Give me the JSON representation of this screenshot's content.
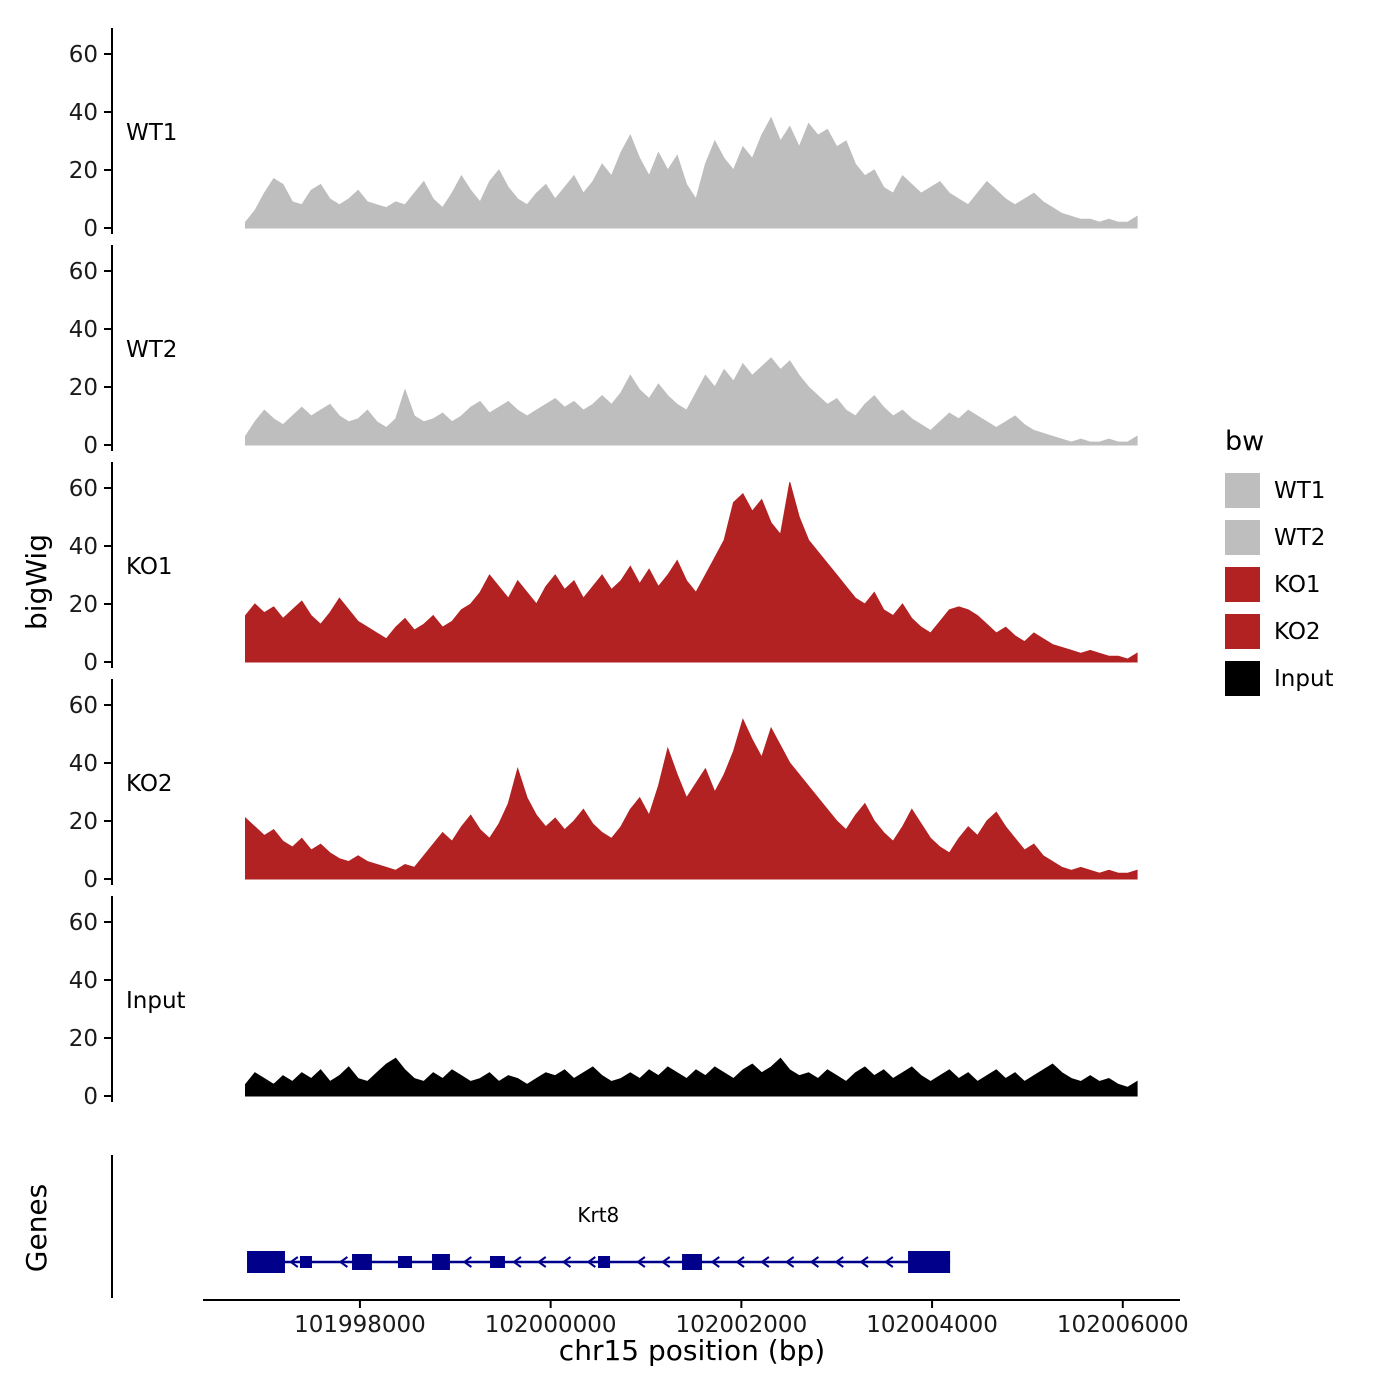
{
  "figure": {
    "background": "#ffffff",
    "y_axis_label": "bigWig",
    "genes_axis_label": "Genes",
    "x_axis": {
      "title": "chr15 position (bp)",
      "range": [
        101995400,
        102006600
      ],
      "ticks": [
        101998000,
        102000000,
        102002000,
        102004000,
        102006000
      ],
      "tick_labels": [
        "101998000",
        "102000000",
        "102002000",
        "102004000",
        "102006000"
      ]
    },
    "y_ticks": [
      0,
      20,
      40,
      60
    ],
    "axis_color": "#000000",
    "text_color": "#1a1a1a"
  },
  "legend": {
    "title": "bw",
    "items": [
      {
        "label": "WT1",
        "color": "#bebebe"
      },
      {
        "label": "WT2",
        "color": "#bebebe"
      },
      {
        "label": "KO1",
        "color": "#b22222"
      },
      {
        "label": "KO2",
        "color": "#b22222"
      },
      {
        "label": "Input",
        "color": "#000000"
      }
    ]
  },
  "chart_data": {
    "type": "area",
    "title": "",
    "xlabel": "chr15 position (bp)",
    "ylabel": "bigWig",
    "x_range": [
      101996800,
      102006150
    ],
    "n_points": 96,
    "y_range": [
      0,
      65
    ],
    "y_ticks": [
      0,
      20,
      40,
      60
    ],
    "grid": false,
    "legend_position": "right",
    "tracks": [
      {
        "name": "WT1",
        "color": "#bebebe",
        "values": [
          2,
          6,
          12,
          17,
          15,
          9,
          8,
          13,
          15,
          10,
          8,
          10,
          13,
          9,
          8,
          7,
          9,
          8,
          12,
          16,
          10,
          7,
          12,
          18,
          13,
          9,
          16,
          20,
          14,
          10,
          8,
          12,
          15,
          10,
          14,
          18,
          12,
          16,
          22,
          18,
          26,
          32,
          24,
          18,
          26,
          20,
          25,
          15,
          10,
          22,
          30,
          24,
          20,
          28,
          24,
          32,
          38,
          30,
          35,
          28,
          36,
          32,
          34,
          28,
          30,
          22,
          18,
          20,
          14,
          12,
          18,
          15,
          12,
          14,
          16,
          12,
          10,
          8,
          12,
          16,
          13,
          10,
          8,
          10,
          12,
          9,
          7,
          5,
          4,
          3,
          3,
          2,
          3,
          2,
          2,
          4
        ]
      },
      {
        "name": "WT2",
        "color": "#bebebe",
        "values": [
          3,
          8,
          12,
          9,
          7,
          10,
          13,
          10,
          12,
          14,
          10,
          8,
          9,
          12,
          8,
          6,
          9,
          19,
          10,
          8,
          9,
          11,
          8,
          10,
          13,
          15,
          11,
          13,
          15,
          12,
          10,
          12,
          14,
          16,
          13,
          15,
          12,
          14,
          17,
          14,
          18,
          24,
          19,
          16,
          21,
          17,
          14,
          12,
          18,
          24,
          20,
          26,
          22,
          28,
          24,
          27,
          30,
          26,
          29,
          24,
          20,
          17,
          14,
          16,
          12,
          10,
          14,
          17,
          13,
          10,
          12,
          9,
          7,
          5,
          8,
          11,
          9,
          12,
          10,
          8,
          6,
          8,
          10,
          7,
          5,
          4,
          3,
          2,
          1,
          2,
          1,
          1,
          2,
          1,
          1,
          3
        ]
      },
      {
        "name": "KO1",
        "color": "#b22222",
        "values": [
          16,
          20,
          17,
          19,
          15,
          18,
          21,
          16,
          13,
          17,
          22,
          18,
          14,
          12,
          10,
          8,
          12,
          15,
          11,
          13,
          16,
          12,
          14,
          18,
          20,
          24,
          30,
          26,
          22,
          28,
          24,
          20,
          26,
          30,
          25,
          28,
          22,
          26,
          30,
          25,
          28,
          33,
          27,
          32,
          26,
          30,
          35,
          28,
          24,
          30,
          36,
          42,
          55,
          58,
          52,
          56,
          48,
          44,
          62,
          50,
          42,
          38,
          34,
          30,
          26,
          22,
          20,
          24,
          18,
          16,
          20,
          15,
          12,
          10,
          14,
          18,
          19,
          18,
          16,
          13,
          10,
          12,
          9,
          7,
          10,
          8,
          6,
          5,
          4,
          3,
          4,
          3,
          2,
          2,
          1,
          3
        ]
      },
      {
        "name": "KO2",
        "color": "#b22222",
        "values": [
          21,
          18,
          15,
          17,
          13,
          11,
          14,
          10,
          12,
          9,
          7,
          6,
          8,
          6,
          5,
          4,
          3,
          5,
          4,
          8,
          12,
          16,
          13,
          18,
          22,
          17,
          14,
          19,
          26,
          38,
          28,
          22,
          18,
          21,
          17,
          20,
          24,
          19,
          16,
          14,
          18,
          24,
          28,
          22,
          32,
          45,
          36,
          28,
          33,
          38,
          30,
          36,
          44,
          55,
          48,
          42,
          52,
          46,
          40,
          36,
          32,
          28,
          24,
          20,
          17,
          22,
          26,
          20,
          16,
          13,
          18,
          24,
          19,
          14,
          11,
          9,
          14,
          18,
          15,
          20,
          23,
          18,
          14,
          10,
          12,
          8,
          6,
          4,
          3,
          4,
          3,
          2,
          3,
          2,
          2,
          3
        ]
      },
      {
        "name": "Input",
        "color": "#000000",
        "values": [
          4,
          8,
          6,
          4,
          7,
          5,
          8,
          6,
          9,
          5,
          7,
          10,
          6,
          5,
          8,
          11,
          13,
          9,
          6,
          5,
          8,
          6,
          9,
          7,
          5,
          6,
          8,
          5,
          7,
          6,
          4,
          6,
          8,
          7,
          9,
          6,
          8,
          10,
          7,
          5,
          6,
          8,
          6,
          9,
          7,
          10,
          8,
          6,
          9,
          7,
          10,
          8,
          6,
          9,
          11,
          8,
          10,
          13,
          9,
          7,
          8,
          6,
          9,
          7,
          5,
          8,
          10,
          7,
          9,
          6,
          8,
          10,
          7,
          5,
          7,
          9,
          6,
          8,
          5,
          7,
          9,
          6,
          8,
          5,
          7,
          9,
          11,
          8,
          6,
          5,
          7,
          5,
          6,
          4,
          3,
          5
        ]
      }
    ],
    "gene_track": {
      "gene": {
        "name": "Krt8",
        "strand": "-",
        "start": 101996816,
        "end": 102004189,
        "color": "#00008b",
        "label_x": 102000500,
        "exons": [
          {
            "start": 101996816,
            "end": 101997214,
            "size": "large"
          },
          {
            "start": 101997371,
            "end": 101997497,
            "size": "small"
          },
          {
            "start": 101997917,
            "end": 101998126,
            "size": "medium"
          },
          {
            "start": 101998399,
            "end": 101998546,
            "size": "small"
          },
          {
            "start": 101998756,
            "end": 101998944,
            "size": "medium"
          },
          {
            "start": 101999364,
            "end": 101999521,
            "size": "small"
          },
          {
            "start": 102000497,
            "end": 102000623,
            "size": "small"
          },
          {
            "start": 102001378,
            "end": 102001587,
            "size": "medium"
          },
          {
            "start": 102003748,
            "end": 102004189,
            "size": "large"
          }
        ]
      }
    }
  }
}
